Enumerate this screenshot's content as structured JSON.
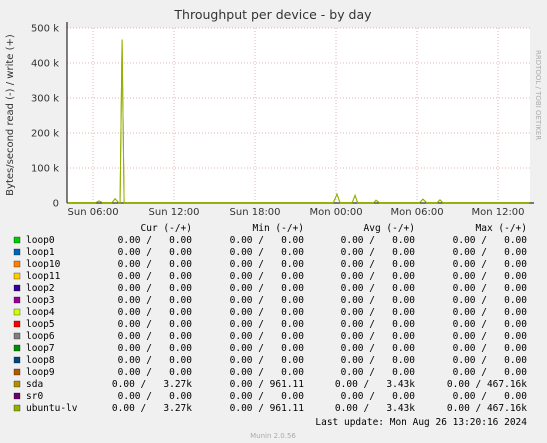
{
  "chart_data": {
    "type": "line",
    "title": "Throughput per device - by day",
    "y_label": "Bytes/second read (-) / write (+)",
    "side_label": "RRDTOOL / TOBI OETIKER",
    "xlim": [
      4.07,
      38.37
    ],
    "xticks": [
      {
        "value": 6,
        "label": "Sun 06:00"
      },
      {
        "value": 12,
        "label": "Sun 12:00"
      },
      {
        "value": 18,
        "label": "Sun 18:00"
      },
      {
        "value": 24,
        "label": "Mon 00:00"
      },
      {
        "value": 30,
        "label": "Mon 06:00"
      },
      {
        "value": 36,
        "label": "Mon 12:00"
      }
    ],
    "ylim": [
      0,
      500000
    ],
    "yticks": [
      {
        "value": 0,
        "label": "0"
      },
      {
        "value": 100000,
        "label": "100 k"
      },
      {
        "value": 200000,
        "label": "200 k"
      },
      {
        "value": 300000,
        "label": "300 k"
      },
      {
        "value": 400000,
        "label": "400 k"
      },
      {
        "value": 500000,
        "label": "500 k"
      }
    ],
    "grid": true,
    "x": [
      4.1,
      6.2,
      6.44,
      6.7,
      7.4,
      7.63,
      7.9,
      8.0,
      8.15,
      8.3,
      10,
      15,
      20,
      23.8,
      24.07,
      24.3,
      25.2,
      25.41,
      25.6,
      26.8,
      26.96,
      27.2,
      30.2,
      30.44,
      30.7,
      31.5,
      31.7,
      31.9,
      35,
      38.3
    ],
    "series": [
      {
        "name": "sda",
        "color": "#b38f00",
        "values": [
          1000,
          1000,
          6000,
          1000,
          1000,
          12000,
          1000,
          1000,
          467160,
          1000,
          1000,
          1000,
          1000,
          1000,
          25000,
          1000,
          1000,
          22000,
          1000,
          1000,
          8000,
          1000,
          1000,
          11000,
          1000,
          1000,
          9000,
          1000,
          1000,
          1000
        ]
      },
      {
        "name": "ubuntu-lv",
        "color": "#8fb300",
        "values": [
          1000,
          1000,
          6000,
          1000,
          1000,
          12000,
          1000,
          1000,
          467160,
          1000,
          1000,
          1000,
          1000,
          1000,
          25000,
          1000,
          1000,
          22000,
          1000,
          1000,
          8000,
          1000,
          1000,
          11000,
          1000,
          1000,
          9000,
          1000,
          1000,
          1000
        ]
      }
    ]
  },
  "legend": {
    "headers": [
      "Cur (-/+)",
      "Min (-/+)",
      "Avg (-/+)",
      "Max (-/+)"
    ],
    "rows": [
      {
        "name": "loop0",
        "color": "#00cc00",
        "cells": [
          "0.00 /   0.00",
          "0.00 /   0.00",
          "0.00 /   0.00",
          "0.00 /   0.00"
        ]
      },
      {
        "name": "loop1",
        "color": "#0066b3",
        "cells": [
          "0.00 /   0.00",
          "0.00 /   0.00",
          "0.00 /   0.00",
          "0.00 /   0.00"
        ]
      },
      {
        "name": "loop10",
        "color": "#ff8000",
        "cells": [
          "0.00 /   0.00",
          "0.00 /   0.00",
          "0.00 /   0.00",
          "0.00 /   0.00"
        ]
      },
      {
        "name": "loop11",
        "color": "#ffcc00",
        "cells": [
          "0.00 /   0.00",
          "0.00 /   0.00",
          "0.00 /   0.00",
          "0.00 /   0.00"
        ]
      },
      {
        "name": "loop2",
        "color": "#330099",
        "cells": [
          "0.00 /   0.00",
          "0.00 /   0.00",
          "0.00 /   0.00",
          "0.00 /   0.00"
        ]
      },
      {
        "name": "loop3",
        "color": "#990099",
        "cells": [
          "0.00 /   0.00",
          "0.00 /   0.00",
          "0.00 /   0.00",
          "0.00 /   0.00"
        ]
      },
      {
        "name": "loop4",
        "color": "#ccff00",
        "cells": [
          "0.00 /   0.00",
          "0.00 /   0.00",
          "0.00 /   0.00",
          "0.00 /   0.00"
        ]
      },
      {
        "name": "loop5",
        "color": "#ff0000",
        "cells": [
          "0.00 /   0.00",
          "0.00 /   0.00",
          "0.00 /   0.00",
          "0.00 /   0.00"
        ]
      },
      {
        "name": "loop6",
        "color": "#808080",
        "cells": [
          "0.00 /   0.00",
          "0.00 /   0.00",
          "0.00 /   0.00",
          "0.00 /   0.00"
        ]
      },
      {
        "name": "loop7",
        "color": "#008f00",
        "cells": [
          "0.00 /   0.00",
          "0.00 /   0.00",
          "0.00 /   0.00",
          "0.00 /   0.00"
        ]
      },
      {
        "name": "loop8",
        "color": "#00487d",
        "cells": [
          "0.00 /   0.00",
          "0.00 /   0.00",
          "0.00 /   0.00",
          "0.00 /   0.00"
        ]
      },
      {
        "name": "loop9",
        "color": "#b35a00",
        "cells": [
          "0.00 /   0.00",
          "0.00 /   0.00",
          "0.00 /   0.00",
          "0.00 /   0.00"
        ]
      },
      {
        "name": "sda",
        "color": "#b38f00",
        "cells": [
          "0.00 /   3.27k",
          "0.00 / 961.11",
          "0.00 /   3.43k",
          "0.00 / 467.16k"
        ]
      },
      {
        "name": "sr0",
        "color": "#6b006b",
        "cells": [
          "0.00 /   0.00",
          "0.00 /   0.00",
          "0.00 /   0.00",
          "0.00 /   0.00"
        ]
      },
      {
        "name": "ubuntu-lv",
        "color": "#8fb300",
        "cells": [
          "0.00 /   3.27k",
          "0.00 / 961.11",
          "0.00 /   3.43k",
          "0.00 / 467.16k"
        ]
      }
    ]
  },
  "footer": {
    "last_update": "Last update: Mon Aug 26 13:20:16 2024",
    "version": "Munin 2.0.56"
  }
}
